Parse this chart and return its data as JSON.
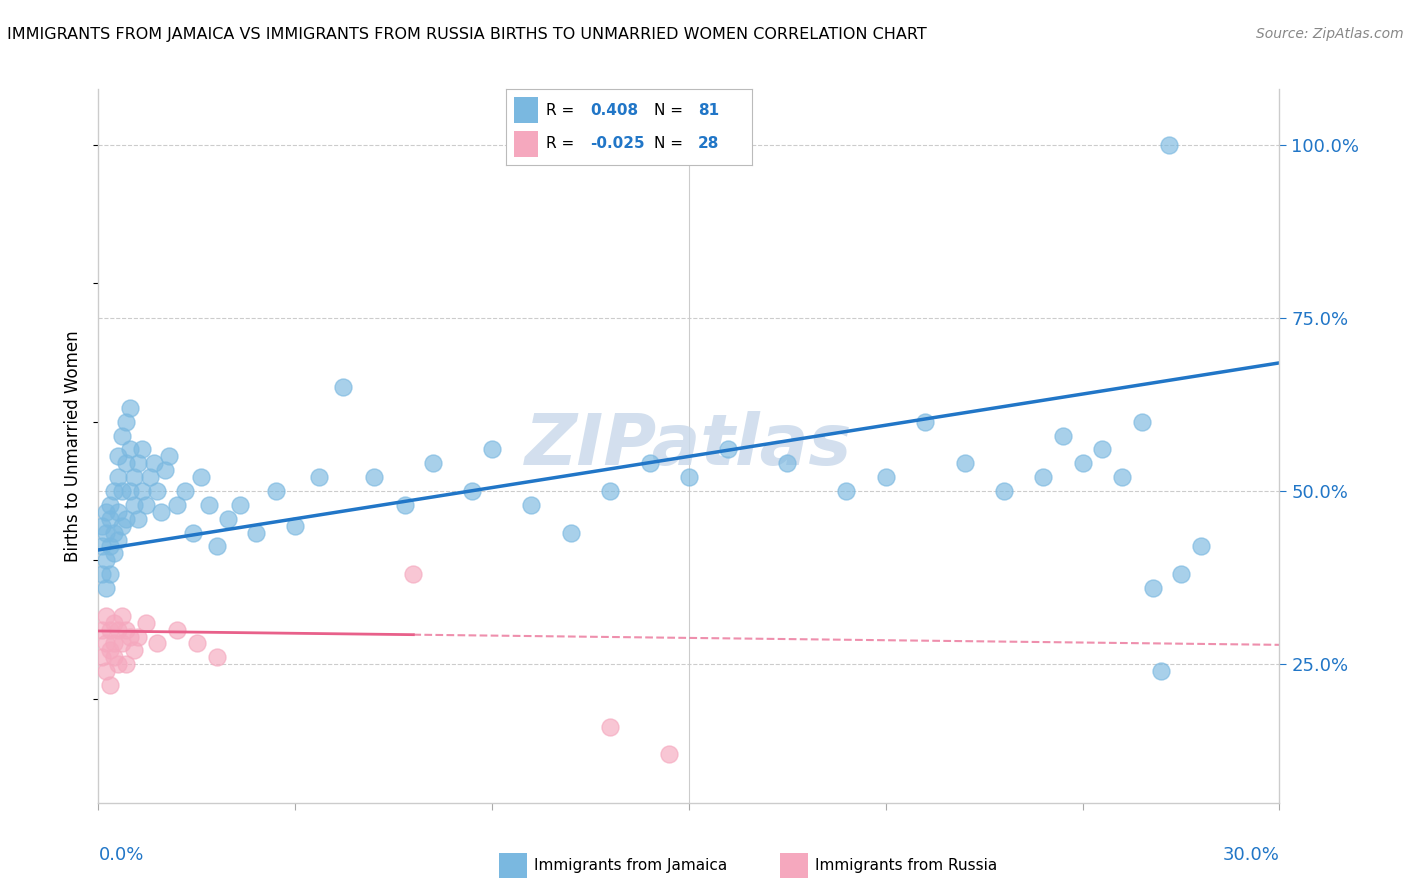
{
  "title": "IMMIGRANTS FROM JAMAICA VS IMMIGRANTS FROM RUSSIA BIRTHS TO UNMARRIED WOMEN CORRELATION CHART",
  "source": "Source: ZipAtlas.com",
  "ylabel": "Births to Unmarried Women",
  "xlim": [
    0.0,
    0.3
  ],
  "ylim": [
    0.05,
    1.08
  ],
  "jamaica_R": "0.408",
  "jamaica_N": "81",
  "russia_R": "-0.025",
  "russia_N": "28",
  "jamaica_color": "#7ab8e0",
  "russia_color": "#f5a8be",
  "jamaica_line_color": "#2176c7",
  "russia_line_color": "#e8608a",
  "watermark": "ZIPatlas",
  "watermark_color": "#c8d8ea",
  "yticks": [
    0.25,
    0.5,
    0.75,
    1.0
  ],
  "ytick_labels": [
    "25.0%",
    "50.0%",
    "75.0%",
    "100.0%"
  ],
  "xtick_left_label": "0.0%",
  "xtick_right_label": "30.0%",
  "legend_jamaica_label": "Immigrants from Jamaica",
  "legend_russia_label": "Immigrants from Russia",
  "jam_line_x0": 0.0,
  "jam_line_y0": 0.415,
  "jam_line_x1": 0.3,
  "jam_line_y1": 0.685,
  "rus_line_x0": 0.0,
  "rus_line_y0": 0.298,
  "rus_line_x1": 0.3,
  "rus_line_y1": 0.278,
  "jam_x": [
    0.001,
    0.001,
    0.001,
    0.002,
    0.002,
    0.002,
    0.002,
    0.003,
    0.003,
    0.003,
    0.003,
    0.004,
    0.004,
    0.004,
    0.005,
    0.005,
    0.005,
    0.005,
    0.006,
    0.006,
    0.006,
    0.007,
    0.007,
    0.007,
    0.008,
    0.008,
    0.008,
    0.009,
    0.009,
    0.01,
    0.01,
    0.011,
    0.011,
    0.012,
    0.013,
    0.014,
    0.015,
    0.016,
    0.017,
    0.018,
    0.02,
    0.022,
    0.024,
    0.026,
    0.028,
    0.03,
    0.033,
    0.036,
    0.04,
    0.045,
    0.05,
    0.056,
    0.062,
    0.07,
    0.078,
    0.085,
    0.095,
    0.1,
    0.11,
    0.12,
    0.13,
    0.14,
    0.15,
    0.16,
    0.175,
    0.19,
    0.2,
    0.21,
    0.22,
    0.23,
    0.24,
    0.245,
    0.25,
    0.255,
    0.26,
    0.265,
    0.268,
    0.27,
    0.275,
    0.28,
    0.272
  ],
  "jam_y": [
    0.42,
    0.38,
    0.45,
    0.44,
    0.4,
    0.47,
    0.36,
    0.46,
    0.42,
    0.48,
    0.38,
    0.44,
    0.5,
    0.41,
    0.55,
    0.47,
    0.43,
    0.52,
    0.58,
    0.5,
    0.45,
    0.6,
    0.54,
    0.46,
    0.62,
    0.56,
    0.5,
    0.48,
    0.52,
    0.54,
    0.46,
    0.56,
    0.5,
    0.48,
    0.52,
    0.54,
    0.5,
    0.47,
    0.53,
    0.55,
    0.48,
    0.5,
    0.44,
    0.52,
    0.48,
    0.42,
    0.46,
    0.48,
    0.44,
    0.5,
    0.45,
    0.52,
    0.65,
    0.52,
    0.48,
    0.54,
    0.5,
    0.56,
    0.48,
    0.44,
    0.5,
    0.54,
    0.52,
    0.56,
    0.54,
    0.5,
    0.52,
    0.6,
    0.54,
    0.5,
    0.52,
    0.58,
    0.54,
    0.56,
    0.52,
    0.6,
    0.36,
    0.24,
    0.38,
    0.42,
    1.0
  ],
  "rus_x": [
    0.001,
    0.001,
    0.002,
    0.002,
    0.002,
    0.003,
    0.003,
    0.003,
    0.004,
    0.004,
    0.004,
    0.005,
    0.005,
    0.006,
    0.006,
    0.007,
    0.007,
    0.008,
    0.009,
    0.01,
    0.012,
    0.015,
    0.02,
    0.025,
    0.03,
    0.08,
    0.13,
    0.145
  ],
  "rus_y": [
    0.3,
    0.26,
    0.28,
    0.24,
    0.32,
    0.3,
    0.27,
    0.22,
    0.26,
    0.31,
    0.28,
    0.3,
    0.25,
    0.32,
    0.28,
    0.3,
    0.25,
    0.29,
    0.27,
    0.29,
    0.31,
    0.28,
    0.3,
    0.28,
    0.26,
    0.38,
    0.16,
    0.12
  ]
}
